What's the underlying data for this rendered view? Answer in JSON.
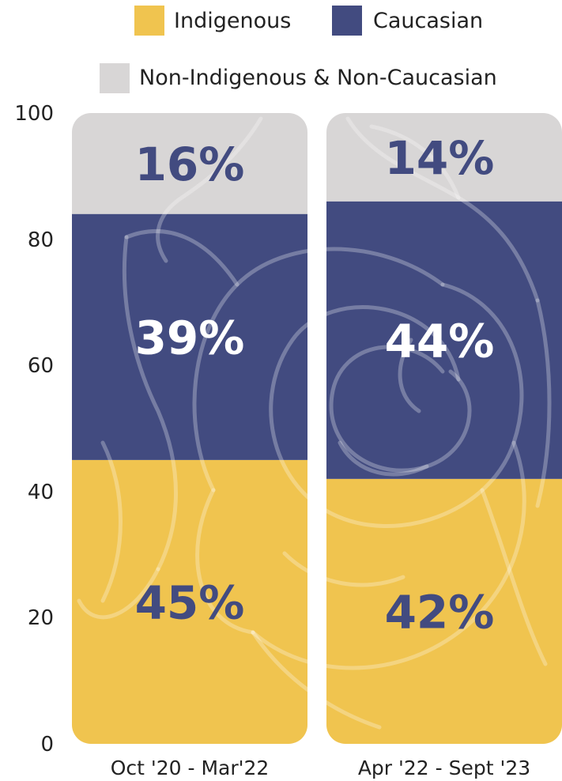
{
  "chart_data": {
    "type": "bar",
    "stacked": true,
    "categories": [
      "Oct '20 - Mar'22",
      "Apr '22 - Sept '23"
    ],
    "series": [
      {
        "name": "Indigenous",
        "values": [
          45,
          42
        ],
        "labels": [
          "45%",
          "42%"
        ],
        "color": "#f0c44f",
        "label_color": "#424b80"
      },
      {
        "name": "Caucasian",
        "values": [
          39,
          44
        ],
        "labels": [
          "39%",
          "44%"
        ],
        "color": "#424b80",
        "label_color": "#ffffff"
      },
      {
        "name": "Non-Indigenous & Non-Caucasian",
        "values": [
          16,
          14
        ],
        "labels": [
          "16%",
          "14%"
        ],
        "color": "#d8d6d6",
        "label_color": "#424b80"
      }
    ],
    "ylim": [
      0,
      100
    ],
    "yticks": [
      "0",
      "20",
      "40",
      "60",
      "80",
      "100"
    ],
    "legend_position": "top",
    "grid": false
  }
}
